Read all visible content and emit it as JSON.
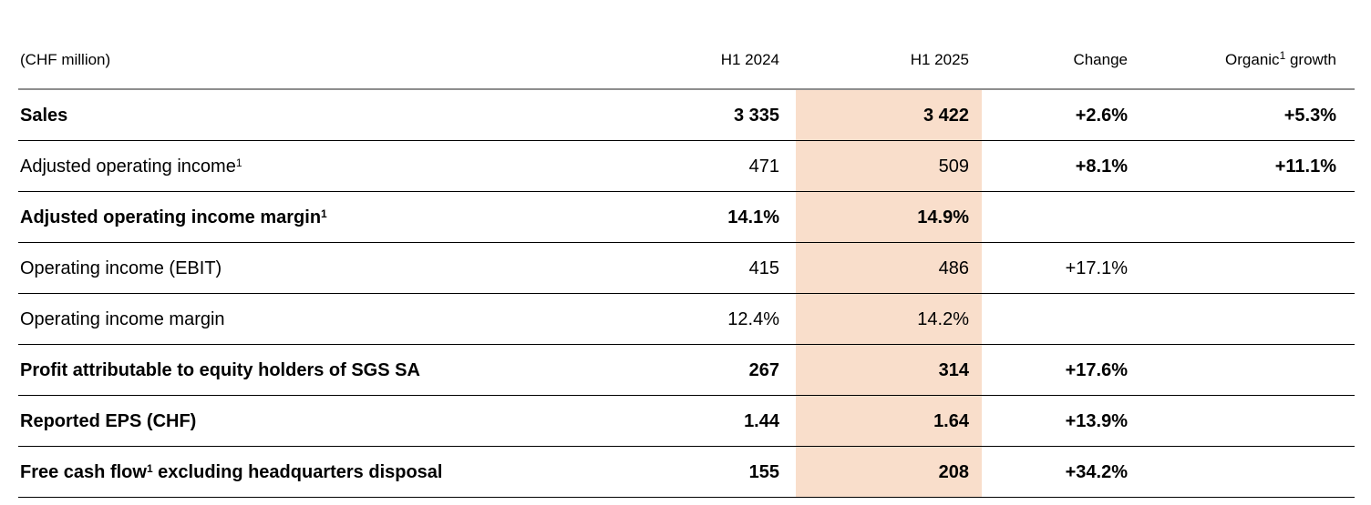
{
  "colors": {
    "highlight_column": "#f9decb",
    "header_rule": "#8e8e8e",
    "row_rule": "#000000",
    "text": "#000000"
  },
  "header": {
    "unit_label": "(CHF million)",
    "col_h1_2024": "H1 2024",
    "col_h1_2025": "H1 2025",
    "col_change": "Change",
    "col_organic_pre": "Organic",
    "col_organic_sup": "1",
    "col_organic_post": " growth"
  },
  "rows": [
    {
      "label_pre": "Sales",
      "label_sup": "",
      "label_post": "",
      "h1_2024": "3 335",
      "h1_2025": "3 422",
      "change": "+2.6%",
      "organic": "+5.3%"
    },
    {
      "label_pre": "Adjusted operating income",
      "label_sup": "1",
      "label_post": "",
      "h1_2024": "471",
      "h1_2025": "509",
      "change": "+8.1%",
      "organic": "+11.1%"
    },
    {
      "label_pre": "Adjusted operating income margin",
      "label_sup": "1",
      "label_post": "",
      "h1_2024": "14.1%",
      "h1_2025": "14.9%",
      "change": "",
      "organic": ""
    },
    {
      "label_pre": "Operating income (EBIT)",
      "label_sup": "",
      "label_post": "",
      "h1_2024": "415",
      "h1_2025": "486",
      "change": "+17.1%",
      "organic": ""
    },
    {
      "label_pre": "Operating income margin",
      "label_sup": "",
      "label_post": "",
      "h1_2024": "12.4%",
      "h1_2025": "14.2%",
      "change": "",
      "organic": ""
    },
    {
      "label_pre": "Profit attributable to equity holders of SGS SA",
      "label_sup": "",
      "label_post": "",
      "h1_2024": "267",
      "h1_2025": "314",
      "change": "+17.6%",
      "organic": ""
    },
    {
      "label_pre": "Reported EPS (CHF)",
      "label_sup": "",
      "label_post": "",
      "h1_2024": "1.44",
      "h1_2025": "1.64",
      "change": "+13.9%",
      "organic": ""
    },
    {
      "label_pre": "Free cash flow",
      "label_sup": "1",
      "label_post": " excluding headquarters disposal",
      "h1_2024": "155",
      "h1_2025": "208",
      "change": "+34.2%",
      "organic": ""
    }
  ]
}
